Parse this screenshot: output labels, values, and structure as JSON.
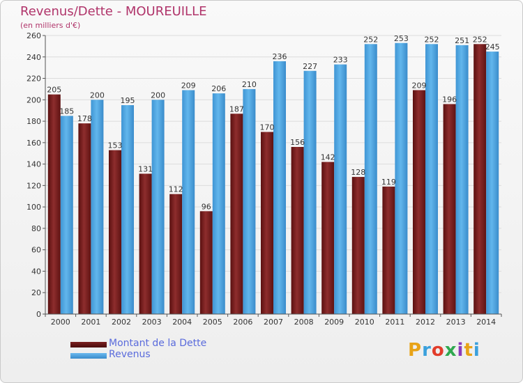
{
  "header": {
    "title": "Revenus/Dette - MOUREUILLE",
    "subtitle": "(en milliers d'€)"
  },
  "legend": {
    "items": [
      {
        "label": "Montant de la Dette",
        "color": "#7a1f1f"
      },
      {
        "label": "Revenus",
        "color": "#4ea6e0"
      }
    ]
  },
  "logo": {
    "text": "Proxiti",
    "colors": [
      "#e8a317",
      "#3aa0dc",
      "#e23c2a",
      "#2fa84f",
      "#8a3ab9",
      "#e8a317",
      "#3aa0dc"
    ]
  },
  "chart_data": {
    "type": "bar",
    "title": "Revenus/Dette - MOUREUILLE",
    "ylabel": "(en milliers d'€)",
    "categories": [
      "2000",
      "2001",
      "2002",
      "2003",
      "2004",
      "2005",
      "2006",
      "2007",
      "2008",
      "2009",
      "2010",
      "2011",
      "2012",
      "2013",
      "2014"
    ],
    "series": [
      {
        "name": "Montant de la Dette",
        "color": "#7a1f1f",
        "values": [
          205,
          178,
          153,
          131,
          112,
          96,
          187,
          170,
          156,
          142,
          128,
          119,
          209,
          196,
          252
        ]
      },
      {
        "name": "Revenus",
        "color": "#4ea6e0",
        "values": [
          185,
          200,
          195,
          200,
          209,
          206,
          210,
          236,
          227,
          233,
          252,
          253,
          252,
          251,
          245
        ]
      }
    ],
    "ylim": [
      0,
      260
    ],
    "ytick_step": 20,
    "grid": true
  }
}
